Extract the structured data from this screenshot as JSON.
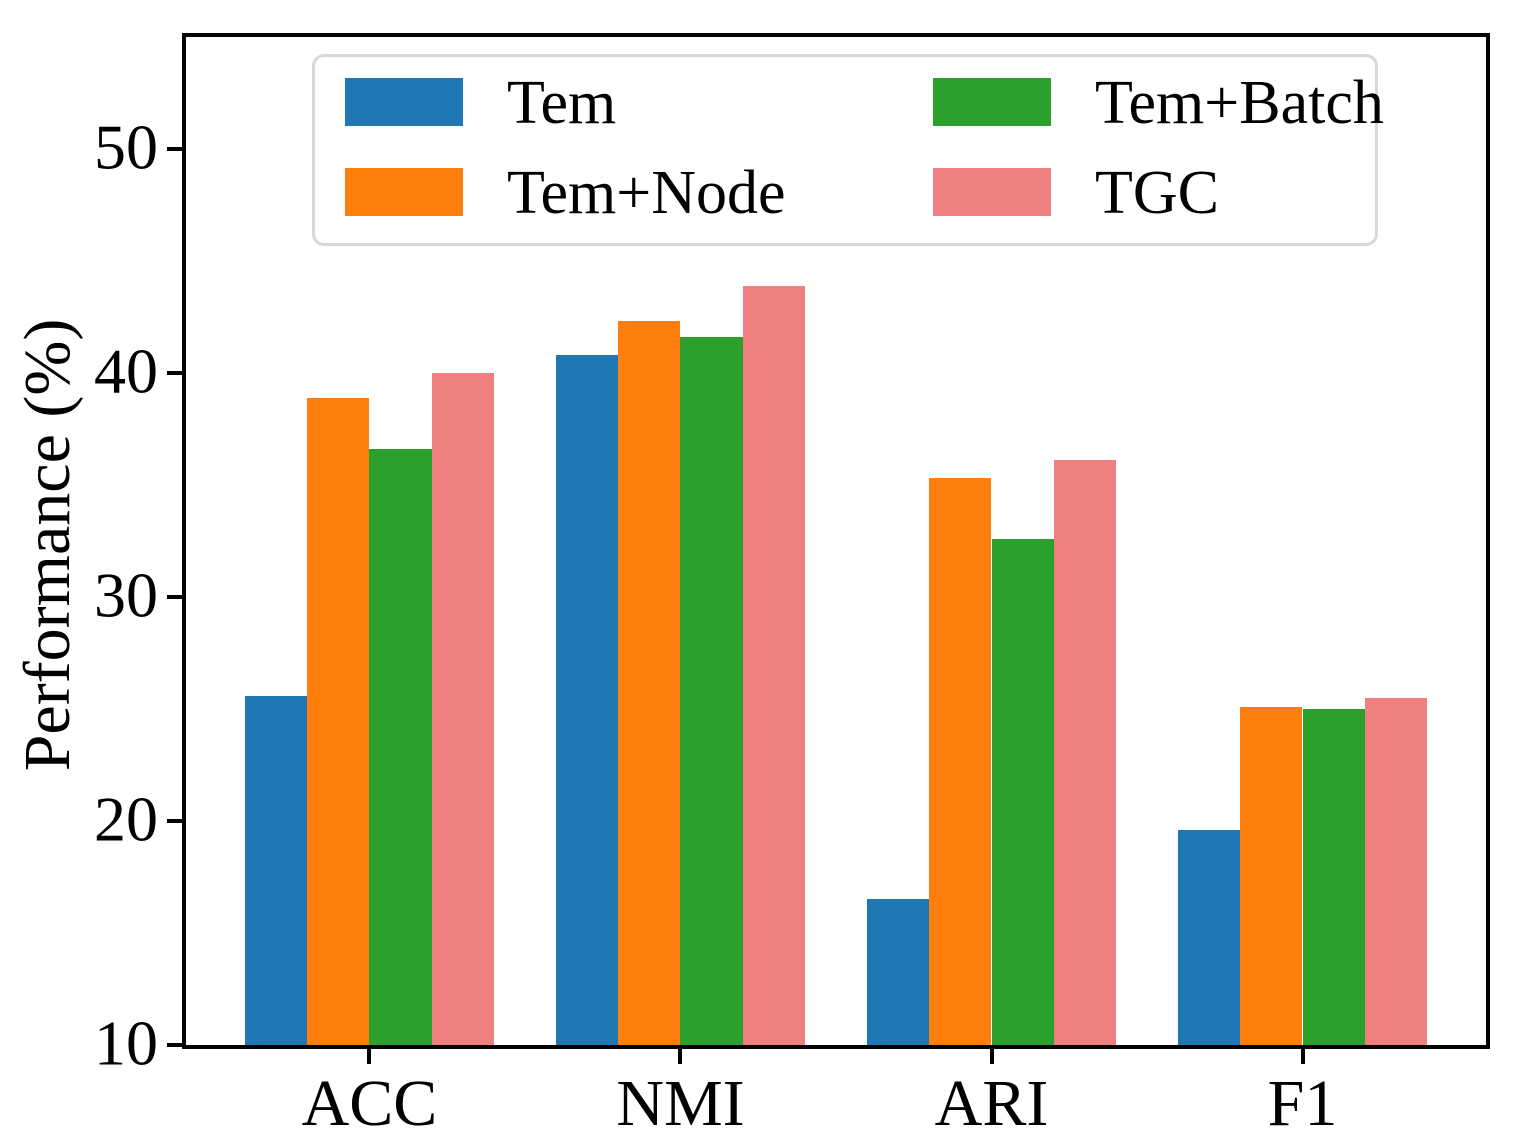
{
  "chart_data": {
    "type": "bar",
    "title": "",
    "xlabel": "",
    "ylabel": "Performance (%)",
    "categories": [
      "ACC",
      "NMI",
      "ARI",
      "F1"
    ],
    "series": [
      {
        "name": "Tem",
        "color": "#1f77b4",
        "values": [
          25.6,
          40.8,
          16.5,
          19.6
        ]
      },
      {
        "name": "Tem+Node",
        "color": "#ff7f0e",
        "values": [
          38.9,
          42.3,
          35.3,
          25.1
        ]
      },
      {
        "name": "Tem+Batch",
        "color": "#2ca02c",
        "values": [
          36.6,
          41.6,
          32.6,
          25.0
        ]
      },
      {
        "name": "TGC",
        "color": "#f08080",
        "values": [
          40.0,
          43.9,
          36.1,
          25.5
        ]
      }
    ],
    "ylim": [
      10,
      55
    ],
    "yticks": [
      10,
      20,
      30,
      40,
      50
    ],
    "bar_group_width": 0.8,
    "grid": false,
    "legend_position": "upper center, 2 columns",
    "axis_color": "#000000",
    "background_color": "#ffffff"
  }
}
